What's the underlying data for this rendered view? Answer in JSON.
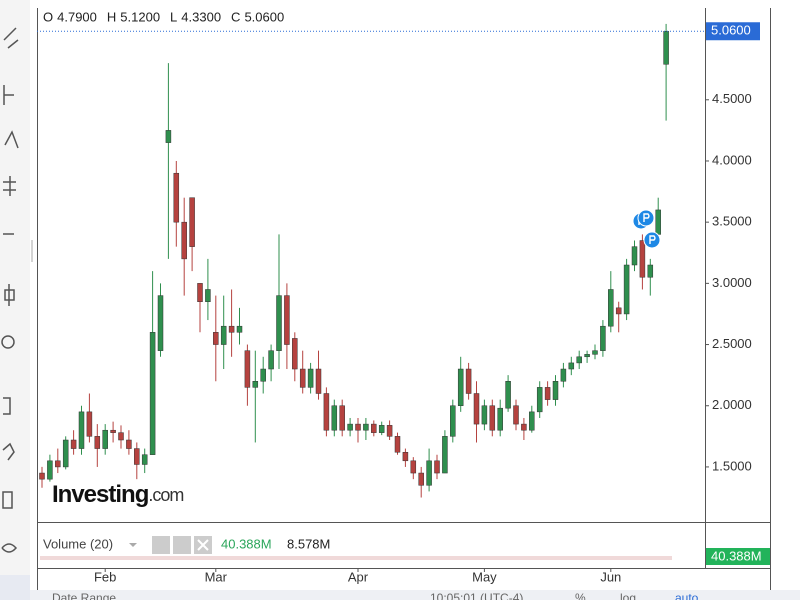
{
  "chart_data": {
    "type": "candlestick",
    "header": [
      {
        "key": "O",
        "value": "4.7900"
      },
      {
        "key": "H",
        "value": "5.1200"
      },
      {
        "key": "L",
        "value": "4.3300"
      },
      {
        "key": "C",
        "value": "5.0600"
      }
    ],
    "last_price": {
      "value": 5.06,
      "label": "5.0600"
    },
    "logo": {
      "brand": "Investing",
      "suffix": ".com"
    },
    "up_color": "#2f8f4e",
    "down_color": "#b5423f",
    "ylim": [
      1.05,
      5.25
    ],
    "yticks": [
      {
        "value": 1.5,
        "label": "1.5000"
      },
      {
        "value": 2.0,
        "label": "2.0000"
      },
      {
        "value": 2.5,
        "label": "2.5000"
      },
      {
        "value": 3.0,
        "label": "3.0000"
      },
      {
        "value": 3.5,
        "label": "3.5000"
      },
      {
        "value": 4.0,
        "label": "4.0000"
      },
      {
        "value": 4.5,
        "label": "4.5000"
      }
    ],
    "categories": [
      null,
      null,
      null,
      null,
      null,
      null,
      null,
      null,
      "Feb",
      null,
      null,
      null,
      null,
      null,
      null,
      null,
      null,
      null,
      null,
      null,
      null,
      null,
      "Mar",
      null,
      null,
      null,
      null,
      null,
      null,
      null,
      null,
      null,
      null,
      null,
      null,
      null,
      null,
      null,
      null,
      null,
      "Apr",
      null,
      null,
      null,
      null,
      null,
      null,
      null,
      null,
      null,
      null,
      null,
      null,
      null,
      null,
      null,
      "May",
      null,
      null,
      null,
      null,
      null,
      null,
      null,
      null,
      null,
      null,
      null,
      null,
      null,
      null,
      null,
      "Jun",
      null,
      null,
      null,
      null,
      null,
      null,
      null
    ],
    "open": [
      1.45,
      1.4,
      1.55,
      1.5,
      1.72,
      1.65,
      1.95,
      1.75,
      1.65,
      1.8,
      1.78,
      1.72,
      1.65,
      1.52,
      1.6,
      2.45,
      4.15,
      3.9,
      3.5,
      3.7,
      3.0,
      2.85,
      2.6,
      2.5,
      2.65,
      2.6,
      2.45,
      2.15,
      2.2,
      2.3,
      2.45,
      2.9,
      2.55,
      2.3,
      2.15,
      2.3,
      2.1,
      1.8,
      2.0,
      1.8,
      1.85,
      1.8,
      1.85,
      1.78,
      1.84,
      1.75,
      1.62,
      1.55,
      1.45,
      1.35,
      1.55,
      1.45,
      1.75,
      2.0,
      2.3,
      2.1,
      1.85,
      2.0,
      1.8,
      1.98,
      2.0,
      1.85,
      1.8,
      1.95,
      2.15,
      2.05,
      2.2,
      2.3,
      2.35,
      2.4,
      2.42,
      2.45,
      2.65,
      2.8,
      2.75,
      3.15,
      3.35,
      3.05,
      3.4,
      4.79
    ],
    "high": [
      1.5,
      1.6,
      1.65,
      1.75,
      1.8,
      2.0,
      2.1,
      1.85,
      1.85,
      1.87,
      1.84,
      1.8,
      1.7,
      1.65,
      3.1,
      3.0,
      4.8,
      4.0,
      3.7,
      3.7,
      3.0,
      3.2,
      2.9,
      2.9,
      2.95,
      2.8,
      2.5,
      2.45,
      2.4,
      2.5,
      3.4,
      3.0,
      2.6,
      2.45,
      2.35,
      2.45,
      2.15,
      2.05,
      2.05,
      1.9,
      1.9,
      1.9,
      1.88,
      1.87,
      1.88,
      1.78,
      1.65,
      1.58,
      1.5,
      1.65,
      1.6,
      1.8,
      2.05,
      2.4,
      2.35,
      2.2,
      2.05,
      2.05,
      2.05,
      2.25,
      2.05,
      1.9,
      2.0,
      2.2,
      2.2,
      2.25,
      2.35,
      2.4,
      2.45,
      2.45,
      2.5,
      2.7,
      3.1,
      2.85,
      3.2,
      3.35,
      3.4,
      3.2,
      3.7,
      5.12
    ],
    "low": [
      1.33,
      1.38,
      1.45,
      1.48,
      1.6,
      1.6,
      1.7,
      1.5,
      1.6,
      1.7,
      1.65,
      1.6,
      1.4,
      1.45,
      1.6,
      2.4,
      3.2,
      3.3,
      2.9,
      3.1,
      2.6,
      2.7,
      2.2,
      2.3,
      2.4,
      2.5,
      2.0,
      1.7,
      2.1,
      2.2,
      2.3,
      2.3,
      2.2,
      2.1,
      2.1,
      2.05,
      1.75,
      1.75,
      1.75,
      1.75,
      1.7,
      1.72,
      1.75,
      1.76,
      1.72,
      1.6,
      1.5,
      1.4,
      1.25,
      1.3,
      1.4,
      1.45,
      1.7,
      1.95,
      2.05,
      1.7,
      1.8,
      1.75,
      1.75,
      1.95,
      1.8,
      1.72,
      1.78,
      1.9,
      2.0,
      2.0,
      2.15,
      2.25,
      2.3,
      2.35,
      2.38,
      2.4,
      2.6,
      2.6,
      2.7,
      3.1,
      2.95,
      2.9,
      3.35,
      4.33
    ],
    "close": [
      1.4,
      1.55,
      1.5,
      1.72,
      1.65,
      1.95,
      1.75,
      1.65,
      1.8,
      1.78,
      1.72,
      1.65,
      1.52,
      1.6,
      2.6,
      2.9,
      4.25,
      3.5,
      3.2,
      3.3,
      2.85,
      2.95,
      2.5,
      2.65,
      2.6,
      2.65,
      2.15,
      2.2,
      2.3,
      2.45,
      2.9,
      2.5,
      2.3,
      2.15,
      2.3,
      2.1,
      1.8,
      2.0,
      1.8,
      1.85,
      1.8,
      1.85,
      1.78,
      1.84,
      1.75,
      1.62,
      1.55,
      1.45,
      1.35,
      1.55,
      1.45,
      1.75,
      2.0,
      2.3,
      2.1,
      1.85,
      2.0,
      1.8,
      1.98,
      2.2,
      1.85,
      1.8,
      1.95,
      2.15,
      2.05,
      2.2,
      2.3,
      2.35,
      2.4,
      2.42,
      2.45,
      2.65,
      2.95,
      2.75,
      3.15,
      3.3,
      3.05,
      3.15,
      3.6,
      5.06
    ],
    "volume_pane": {
      "title": "Volume (20)",
      "last": "40.388M",
      "average": "8.578M",
      "axis_label": "40.388M"
    },
    "footer": {
      "range": "Date Range",
      "time": "10:05:01 (UTC-4)",
      "percent": "%",
      "log": "log",
      "auto": "auto"
    }
  }
}
